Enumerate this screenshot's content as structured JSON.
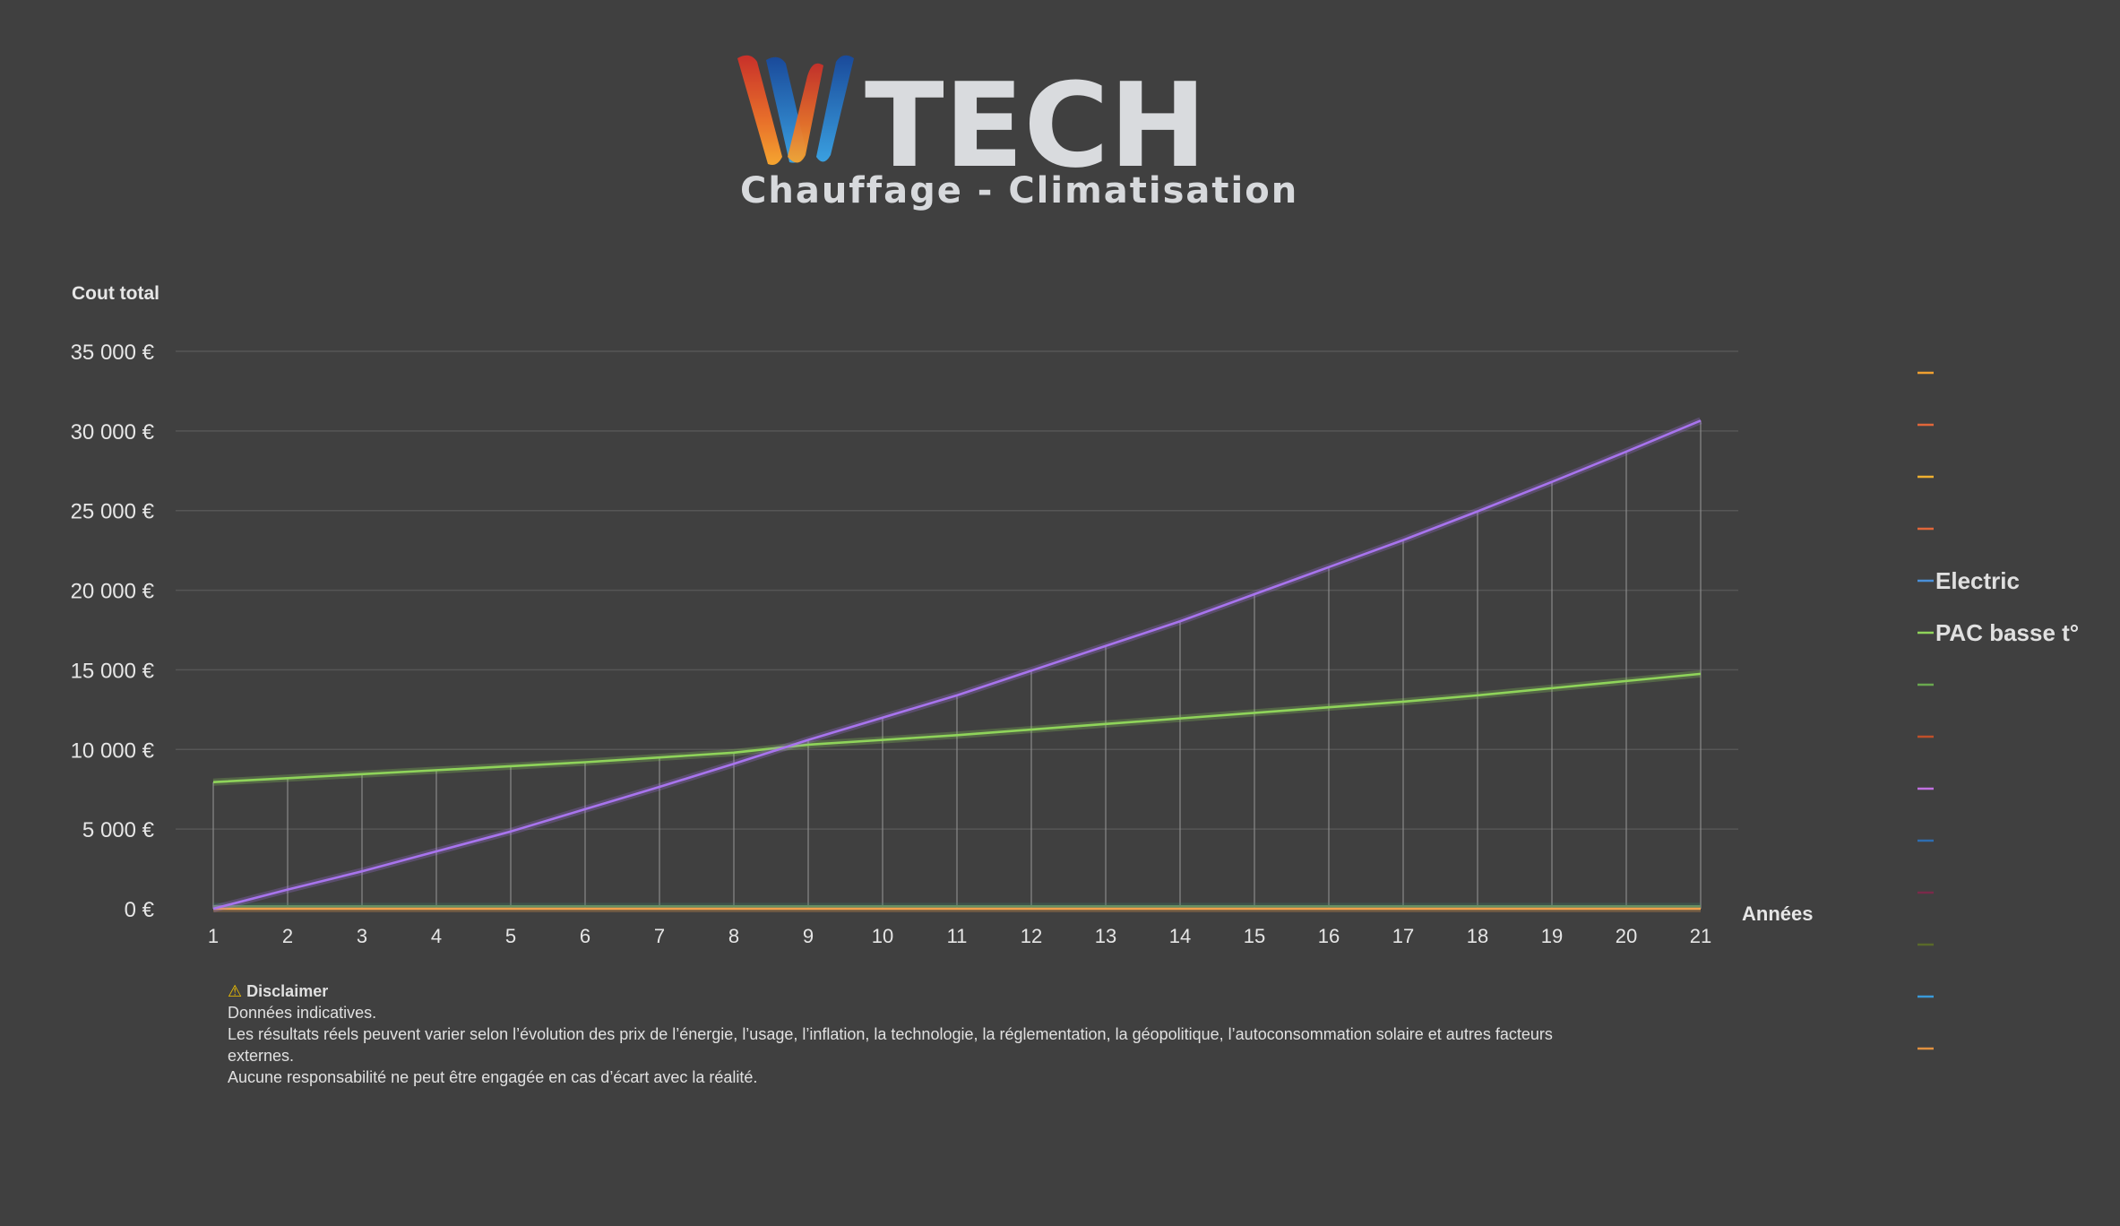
{
  "logo": {
    "name": "WTECH",
    "w_letter": "W",
    "wordmark": "TECH",
    "subtitle": "Chauffage - Climatisation"
  },
  "chart_data": {
    "type": "line",
    "ylabel": "Cout total",
    "xlabel": "Années",
    "ylim": [
      0,
      35000
    ],
    "yticks": [
      0,
      5000,
      10000,
      15000,
      20000,
      25000,
      30000,
      35000
    ],
    "ytick_labels": [
      "0 €",
      "5 000 €",
      "10 000 €",
      "15 000 €",
      "20 000 €",
      "25 000 €",
      "30 000 €",
      "35 000 €"
    ],
    "x": [
      1,
      2,
      3,
      4,
      5,
      6,
      7,
      8,
      9,
      10,
      11,
      12,
      13,
      14,
      15,
      16,
      17,
      18,
      19,
      20,
      21
    ],
    "x_labels": [
      "1",
      "2",
      "3",
      "4",
      "5",
      "6",
      "7",
      "8",
      "9",
      "10",
      "11",
      "12",
      "13",
      "14",
      "15",
      "16",
      "17",
      "18",
      "19",
      "20",
      "21"
    ],
    "grid": true,
    "drop_lines": true,
    "legend_position": "right",
    "series": [
      {
        "name": "Electric",
        "color": "#a874ee",
        "values": [
          0,
          1200,
          2350,
          3600,
          4850,
          6250,
          7650,
          9100,
          10600,
          12000,
          13400,
          14950,
          16500,
          18050,
          19750,
          21450,
          23150,
          24950,
          26800,
          28700,
          30650
        ]
      },
      {
        "name": "PAC basse t°",
        "color": "#8fd45a",
        "values": [
          7950,
          8200,
          8450,
          8700,
          8950,
          9200,
          9500,
          9800,
          10300,
          10600,
          10900,
          11250,
          11600,
          11950,
          12300,
          12650,
          13000,
          13400,
          13850,
          14300,
          14750
        ]
      },
      {
        "name": "",
        "color": "#f0a04b",
        "values": [
          0,
          0,
          0,
          0,
          0,
          0,
          0,
          0,
          0,
          0,
          0,
          0,
          0,
          0,
          0,
          0,
          0,
          0,
          0,
          0,
          0
        ]
      },
      {
        "name": "",
        "color": "#3a8a6a",
        "values": [
          150,
          150,
          150,
          150,
          150,
          150,
          150,
          150,
          150,
          150,
          150,
          150,
          150,
          150,
          150,
          150,
          150,
          150,
          150,
          150,
          150
        ]
      }
    ],
    "legend": [
      {
        "label": "",
        "color": "#f0a030"
      },
      {
        "label": "",
        "color": "#e0663a"
      },
      {
        "label": "",
        "color": "#f0b030"
      },
      {
        "label": "",
        "color": "#e0663a"
      },
      {
        "label": "Electric",
        "color": "#4a90d9"
      },
      {
        "label": "PAC basse t°",
        "color": "#8fd45a"
      },
      {
        "label": "",
        "color": "#6aa84f"
      },
      {
        "label": "",
        "color": "#c0502a"
      },
      {
        "label": "",
        "color": "#c070e0"
      },
      {
        "label": "",
        "color": "#2e6db0"
      },
      {
        "label": "",
        "color": "#7a2a4a"
      },
      {
        "label": "",
        "color": "#5a6a2a"
      },
      {
        "label": "",
        "color": "#3a9ad9"
      },
      {
        "label": "",
        "color": "#e09040"
      }
    ]
  },
  "disclaimer": {
    "icon": "warning-icon",
    "title": "Disclaimer",
    "line1": "Données indicatives.",
    "line2": "Les résultats réels peuvent varier selon l’évolution des prix de l’énergie, l’usage, l’inflation, la technologie, la réglementation, la géopolitique, l’autoconsommation solaire et autres facteurs externes.",
    "line3": "Aucune responsabilité ne peut être engagée en cas d’écart avec la réalité."
  }
}
